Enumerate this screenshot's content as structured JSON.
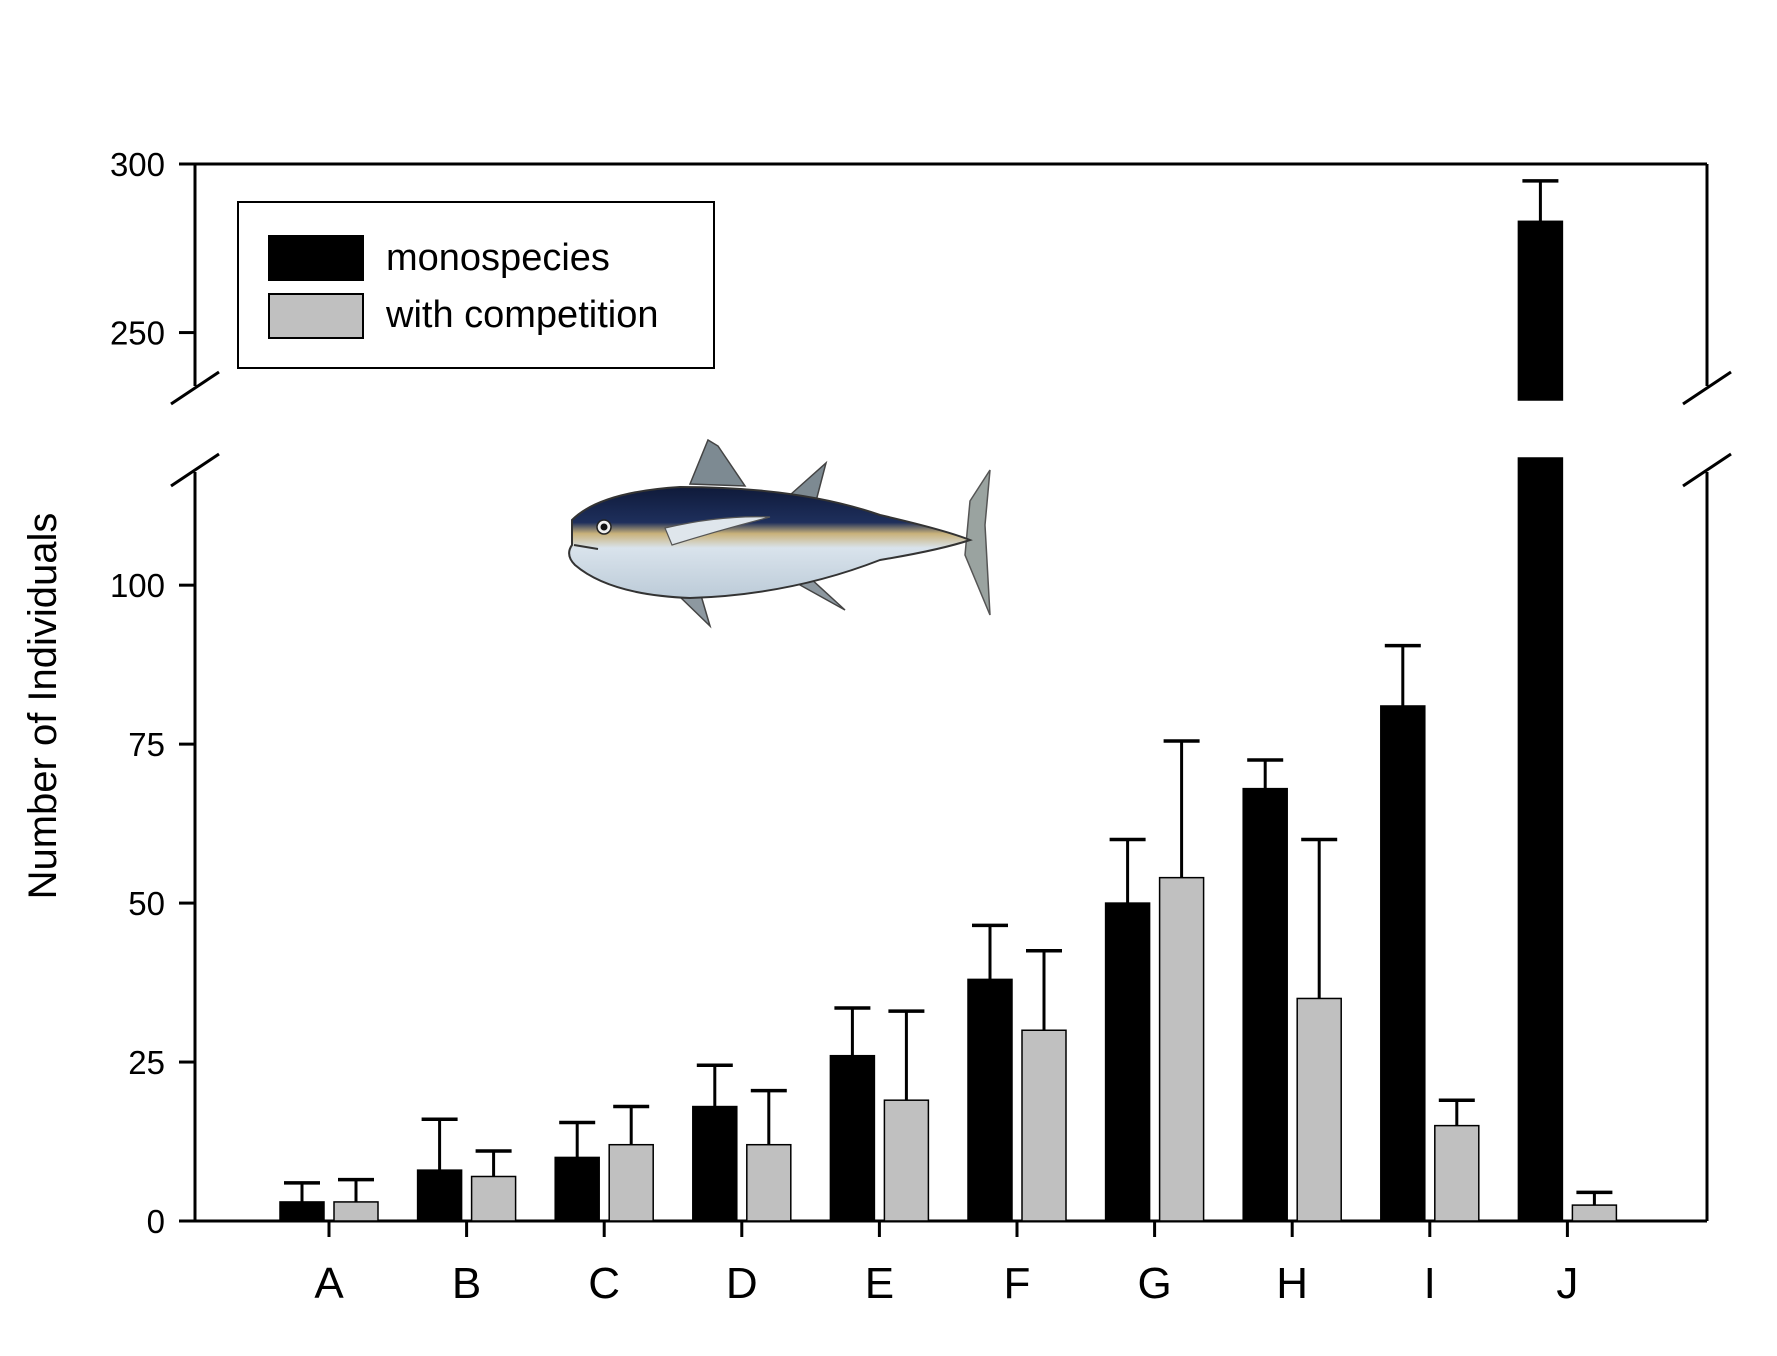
{
  "chart_data": {
    "type": "bar",
    "title": "",
    "xlabel": "",
    "ylabel": "Number of Individuals",
    "categories": [
      "A",
      "B",
      "C",
      "D",
      "E",
      "F",
      "G",
      "H",
      "I",
      "J"
    ],
    "series": [
      {
        "name": "monospecies",
        "color": "#000000",
        "values": [
          3,
          8,
          10,
          18,
          26,
          38,
          50,
          68,
          81,
          283
        ],
        "error": [
          3,
          8,
          5.5,
          6.5,
          7.5,
          8.5,
          10,
          4.5,
          9.5,
          12
        ]
      },
      {
        "name": "with competition",
        "color": "#c0c0c0",
        "values": [
          3,
          7,
          12,
          12,
          19,
          30,
          54,
          35,
          15,
          2.5
        ],
        "error": [
          3.5,
          4,
          6,
          8.5,
          14,
          12.5,
          21.5,
          25,
          4,
          2
        ]
      }
    ],
    "y_axis": {
      "broken": true,
      "lower_segment": {
        "range": [
          0,
          120
        ],
        "ticks": [
          "0",
          "25",
          "50",
          "75",
          "100"
        ]
      },
      "upper_segment": {
        "range": [
          230,
          300
        ],
        "ticks": [
          "250",
          "300"
        ]
      }
    },
    "legend_position": "top-left",
    "grid": false,
    "annotations": [
      {
        "type": "image",
        "icon": "tuna-fish-illustration"
      }
    ]
  }
}
